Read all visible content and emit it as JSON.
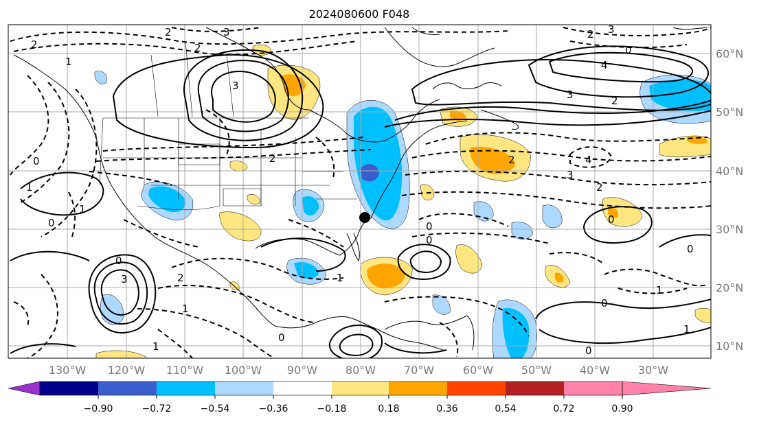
{
  "title": "2024080600 F048",
  "lon_labels": [
    "130°W",
    "120°W",
    "110°W",
    "100°W",
    "90°W",
    "80°W",
    "70°W",
    "60°W",
    "50°W",
    "40°W",
    "30°W"
  ],
  "lat_labels": [
    "60°N",
    "50°N",
    "40°N",
    "30°N",
    "20°N",
    "10°N"
  ],
  "colorbar": {
    "tick_labels": [
      "−0.90",
      "−0.72",
      "−0.54",
      "−0.36",
      "−0.18",
      "0.18",
      "0.36",
      "0.54",
      "0.72",
      "0.90"
    ],
    "colors": [
      "#9932cc",
      "#00008b",
      "#3a5fcd",
      "#00bfff",
      "#add8ff",
      "#ffffff",
      "#ffe680",
      "#ffa500",
      "#ff4500",
      "#b22222",
      "#ff82ab"
    ]
  },
  "contour_labels": [
    "2",
    "3",
    "2",
    "1",
    "3",
    "2",
    "4",
    "3",
    "2",
    "2",
    "3",
    "0",
    "2",
    "4",
    "3",
    "2",
    "2",
    "1",
    "0",
    "0",
    "0",
    "1",
    "3",
    "2",
    "1",
    "0",
    "0",
    "1",
    "0",
    "0",
    "1",
    "0",
    "1",
    "0",
    "0",
    "1"
  ],
  "marker": "storm-center-dot"
}
